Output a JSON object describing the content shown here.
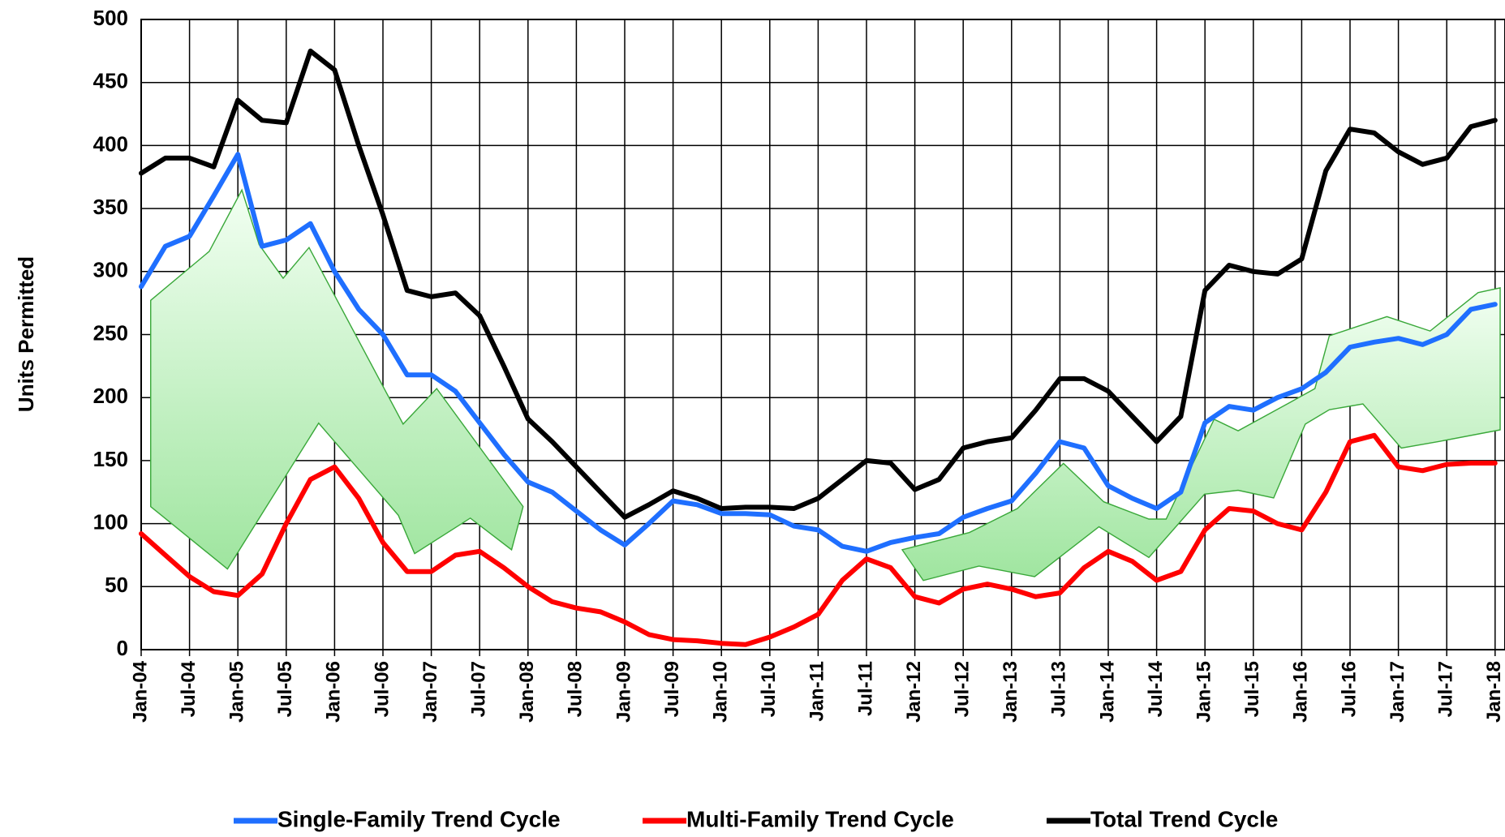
{
  "chart_data": {
    "type": "line",
    "y_axis_label": "Units Permitted",
    "categories": [
      "Jan-04",
      null,
      "Jul-04",
      null,
      "Jan-05",
      null,
      "Jul-05",
      null,
      "Jan-06",
      null,
      "Jul-06",
      null,
      "Jan-07",
      null,
      "Jul-07",
      null,
      "Jan-08",
      null,
      "Jul-08",
      null,
      "Jan-09",
      null,
      "Jul-09",
      null,
      "Jan-10",
      null,
      "Jul-10",
      null,
      "Jan-11",
      null,
      "Jul-11",
      null,
      "Jan-12",
      null,
      "Jul-12",
      null,
      "Jan-13",
      null,
      "Jul-13",
      null,
      "Jan-14",
      null,
      "Jul-14",
      null,
      "Jan-15",
      null,
      "Jul-15",
      null,
      "Jan-16",
      null,
      "Jul-16",
      null,
      "Jan-17",
      null,
      "Jul-17",
      null,
      "Jan-18"
    ],
    "series": [
      {
        "name": "Single-Family Trend Cycle",
        "color": "#1f6fff",
        "values": [
          288,
          320,
          328,
          360,
          393,
          320,
          325,
          338,
          300,
          270,
          250,
          218,
          218,
          205,
          180,
          155,
          133,
          125,
          110,
          95,
          83,
          100,
          118,
          115,
          108,
          108,
          107,
          98,
          95,
          82,
          78,
          85,
          89,
          92,
          105,
          112,
          118,
          140,
          165,
          160,
          130,
          120,
          112,
          125,
          180,
          193,
          190,
          200,
          207,
          220,
          240,
          244,
          247,
          242,
          250,
          270,
          274
        ]
      },
      {
        "name": "Multi-Family Trend Cycle",
        "color": "#ff0000",
        "values": [
          92,
          75,
          58,
          46,
          43,
          60,
          100,
          135,
          145,
          120,
          85,
          62,
          62,
          75,
          78,
          65,
          50,
          38,
          33,
          30,
          22,
          12,
          8,
          7,
          5,
          4,
          10,
          18,
          28,
          55,
          72,
          65,
          42,
          37,
          48,
          52,
          48,
          42,
          45,
          65,
          78,
          70,
          55,
          62,
          95,
          112,
          110,
          100,
          95,
          125,
          165,
          170,
          145,
          142,
          147,
          148,
          148
        ]
      },
      {
        "name": "Total Trend Cycle",
        "color": "#000000",
        "values": [
          378,
          390,
          390,
          383,
          436,
          420,
          418,
          475,
          460,
          400,
          345,
          285,
          280,
          283,
          265,
          225,
          183,
          165,
          145,
          125,
          105,
          115,
          126,
          120,
          112,
          113,
          113,
          112,
          120,
          135,
          150,
          148,
          127,
          135,
          160,
          165,
          168,
          190,
          215,
          215,
          205,
          185,
          165,
          185,
          285,
          305,
          300,
          298,
          310,
          380,
          413,
          410,
          395,
          385,
          390,
          415,
          420
        ]
      }
    ],
    "ylim": [
      0,
      500
    ],
    "yticks": [
      0,
      50,
      100,
      150,
      200,
      250,
      300,
      350,
      400,
      450,
      500
    ],
    "grid": true,
    "legend": "bottom"
  }
}
